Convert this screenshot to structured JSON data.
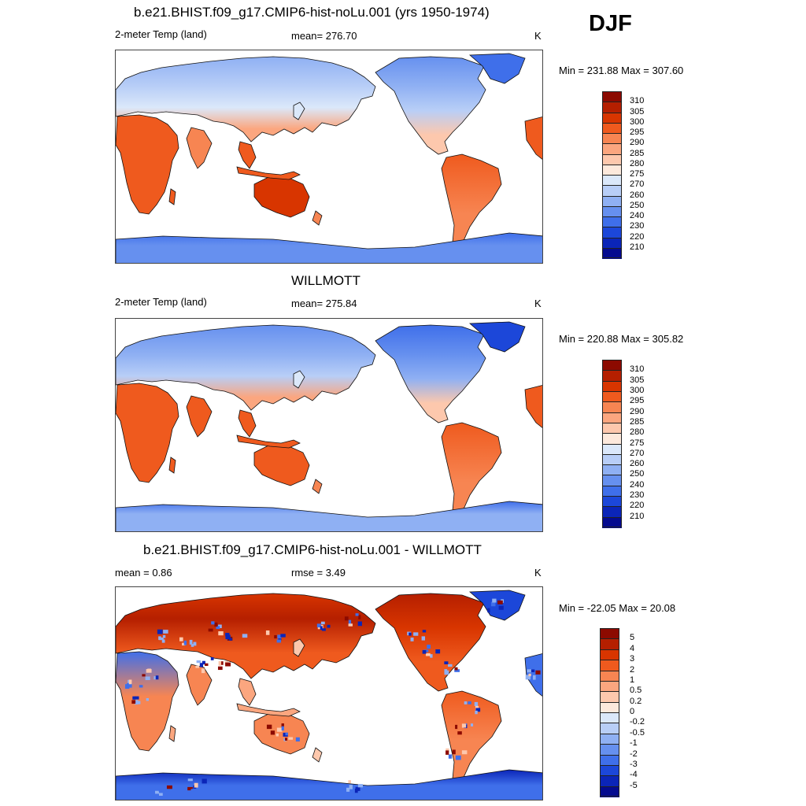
{
  "season": "DJF",
  "panels": [
    {
      "id": "model",
      "title": "b.e21.BHIST.f09_g17.CMIP6-hist-noLu.001 (yrs 1950-1974)",
      "left_label": "2-meter Temp (land)",
      "stat_label": "mean= 276.70",
      "unit": "K",
      "minmax": "Min = 231.88 Max = 307.60",
      "scale": "abs"
    },
    {
      "id": "obs",
      "title": "WILLMOTT",
      "left_label": "2-meter Temp (land)",
      "stat_label": "mean= 275.84",
      "unit": "K",
      "minmax": "Min = 220.88 Max = 305.82",
      "scale": "abs"
    },
    {
      "id": "diff",
      "title": "b.e21.BHIST.f09_g17.CMIP6-hist-noLu.001 - WILLMOTT",
      "left_label": "mean =   0.86",
      "stat_label": "rmse =   3.49",
      "unit": "K",
      "minmax": "Min = -22.05 Max =  20.08",
      "scale": "diff"
    }
  ],
  "colorbars": {
    "abs": {
      "labels": [
        "310",
        "305",
        "300",
        "295",
        "290",
        "285",
        "280",
        "275",
        "270",
        "260",
        "250",
        "240",
        "230",
        "220",
        "210"
      ],
      "colors": [
        "#8c0a00",
        "#b51f00",
        "#d83500",
        "#ef5a1e",
        "#f78552",
        "#fba67f",
        "#fdc8ad",
        "#fde9dc",
        "#dbe8fa",
        "#b8cef7",
        "#8fb0f3",
        "#6690ef",
        "#3f6fea",
        "#1c47d9",
        "#0b25b8",
        "#040a8f"
      ]
    },
    "diff": {
      "labels": [
        "5",
        "4",
        "3",
        "2",
        "1",
        "0.5",
        "0.2",
        "0",
        "-0.2",
        "-0.5",
        "-1",
        "-2",
        "-3",
        "-4",
        "-5"
      ],
      "colors": [
        "#8c0a00",
        "#b51f00",
        "#d83500",
        "#ef5a1e",
        "#f78552",
        "#fba67f",
        "#fdc8ad",
        "#fde9dc",
        "#dbe8fa",
        "#b8cef7",
        "#8fb0f3",
        "#6690ef",
        "#3f6fea",
        "#1c47d9",
        "#0b25b8",
        "#040a8f"
      ]
    }
  }
}
